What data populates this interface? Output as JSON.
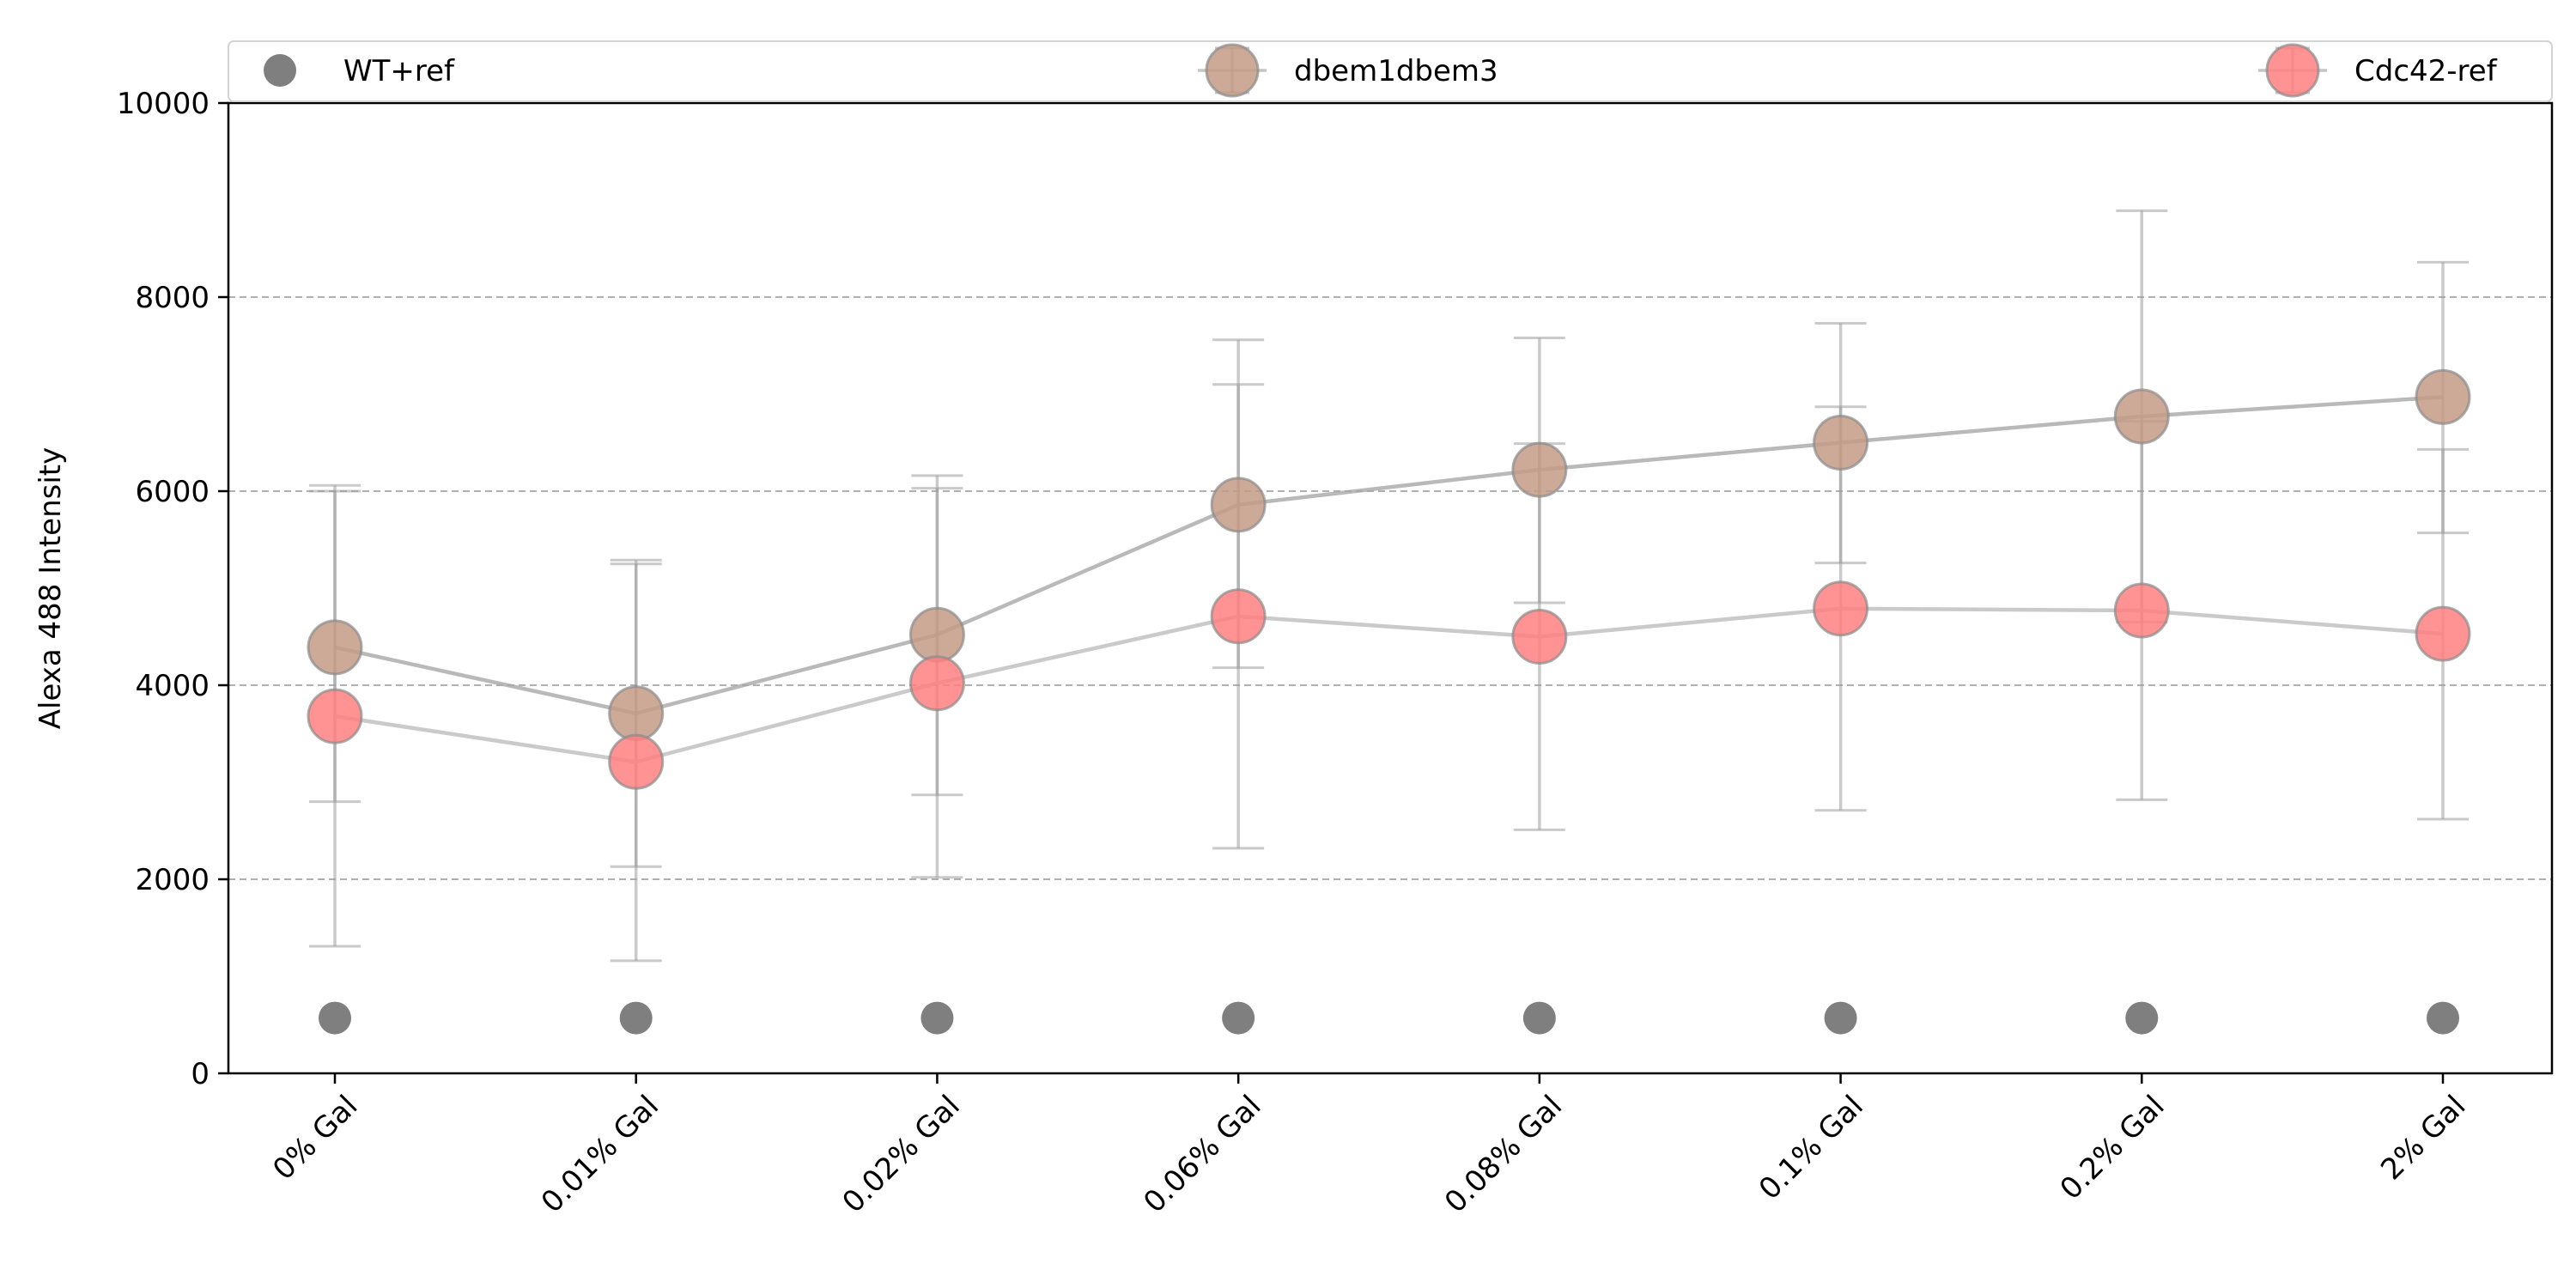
{
  "chart_data": {
    "type": "scatter",
    "title": "",
    "xlabel": "",
    "ylabel": "Alexa 488 Intensity",
    "categories": [
      "0% Gal",
      "0.01% Gal",
      "0.02% Gal",
      "0.06% Gal",
      "0.08% Gal",
      "0.1% Gal",
      "0.2% Gal",
      "2% Gal"
    ],
    "ylim": [
      0,
      10000
    ],
    "yticks": [
      0,
      2000,
      4000,
      6000,
      8000,
      10000
    ],
    "grid": "y-dashed",
    "legend": {
      "placement": "top",
      "columns": 3
    },
    "series": [
      {
        "name": "WT+ref",
        "color": "#7f7f7f",
        "marker": "small-circle",
        "line": false,
        "values": [
          570,
          570,
          570,
          570,
          570,
          570,
          570,
          570
        ]
      },
      {
        "name": "dbem1dbem3",
        "color": "#c49a86",
        "marker": "large-circle",
        "line": true,
        "line_color": "#a8a8a8",
        "values": [
          4390,
          3710,
          4520,
          5860,
          6220,
          6500,
          6770,
          6970
        ],
        "error_low": [
          2800,
          2130,
          2870,
          4180,
          4850,
          5260,
          4650,
          5570
        ],
        "error_high": [
          6000,
          5290,
          6160,
          7560,
          7580,
          7730,
          8890,
          8360
        ]
      },
      {
        "name": "Cdc42-ref",
        "color": "#ff7f7f",
        "marker": "large-circle",
        "line": true,
        "line_color": "#bdbdbd",
        "values": [
          3680,
          3210,
          4020,
          4710,
          4500,
          4790,
          4770,
          4530
        ],
        "error_low": [
          1310,
          1160,
          2020,
          2320,
          2510,
          2710,
          2820,
          2620
        ],
        "error_high": [
          6060,
          5250,
          6030,
          7100,
          6490,
          6870,
          6720,
          6430
        ]
      }
    ]
  }
}
